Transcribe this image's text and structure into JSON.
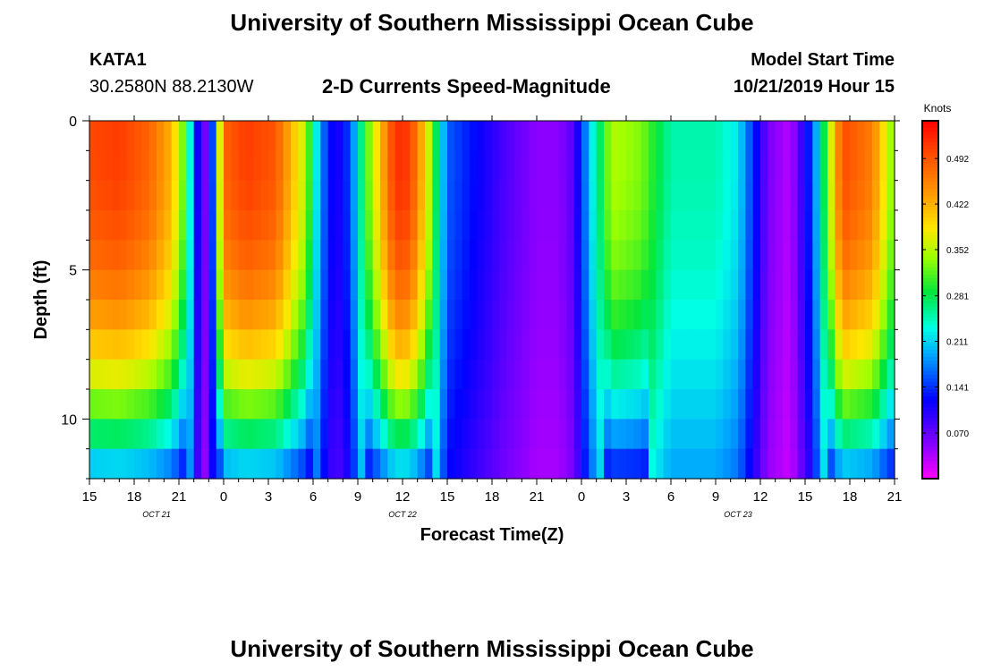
{
  "page": {
    "title_top": "University of Southern Mississippi Ocean Cube",
    "title_bottom": "University of Southern Mississippi Ocean Cube",
    "station_id": "KATA1",
    "station_coords": "30.2580N 88.2130W",
    "plot_title": "2-D Currents Speed-Magnitude",
    "model_start_label": "Model Start Time",
    "model_start_value": "10/21/2019 Hour 15"
  },
  "chart_data": {
    "type": "heatmap",
    "title": "2-D Currents Speed-Magnitude",
    "xlabel": "Forecast Time(Z)",
    "ylabel": "Depth (ft)",
    "colorbar_label": "Knots",
    "x_hours_range": [
      0,
      54
    ],
    "y_depth_range": [
      0,
      12
    ],
    "x_tick_labels": [
      "15",
      "18",
      "21",
      "0",
      "3",
      "6",
      "9",
      "12",
      "15",
      "18",
      "21",
      "0",
      "3",
      "6",
      "9",
      "12",
      "15",
      "18",
      "21"
    ],
    "y_tick_labels": [
      "0",
      "5",
      "10"
    ],
    "y_tick_values": [
      0,
      5,
      10
    ],
    "date_labels": [
      {
        "text": "OCT 21",
        "hour": 4.5
      },
      {
        "text": "OCT 22",
        "hour": 21
      },
      {
        "text": "OCT 23",
        "hour": 43.5
      }
    ],
    "colorbar_ticks": [
      "0.492",
      "0.422",
      "0.352",
      "0.281",
      "0.211",
      "0.141",
      "0.070"
    ],
    "colorbar_tick_values": [
      0.492,
      0.422,
      0.352,
      0.281,
      0.211,
      0.141,
      0.07
    ],
    "colorbar_range": [
      0.0,
      0.55
    ],
    "surface_speed_profile": {
      "hours": [
        0,
        2,
        4,
        5.5,
        6.5,
        7.2,
        8.0,
        9.0,
        10.5,
        12.5,
        14.5,
        15.5,
        16.5,
        17.5,
        18.5,
        20.5,
        21.5,
        22.5,
        24,
        26,
        28,
        30,
        31.5,
        32.5,
        33.5,
        35,
        37,
        39,
        42,
        43.5,
        44.5,
        45.5,
        47,
        48.5,
        50.5,
        52.5,
        54
      ],
      "knots": [
        0.5,
        0.51,
        0.48,
        0.42,
        0.3,
        0.12,
        0.04,
        0.48,
        0.51,
        0.49,
        0.35,
        0.18,
        0.1,
        0.15,
        0.3,
        0.52,
        0.51,
        0.4,
        0.16,
        0.12,
        0.08,
        0.05,
        0.05,
        0.08,
        0.2,
        0.35,
        0.33,
        0.25,
        0.25,
        0.22,
        0.14,
        0.06,
        0.03,
        0.15,
        0.5,
        0.46,
        0.32
      ]
    }
  }
}
